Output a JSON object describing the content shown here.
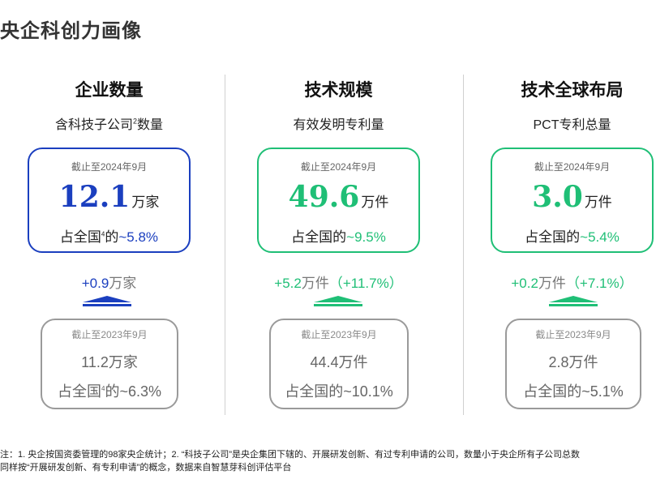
{
  "page_title": "央企科创力画像",
  "colors": {
    "blue": "#1b3fbf",
    "green": "#1fbf76",
    "gray": "#8a8a8a"
  },
  "columns": [
    {
      "title": "企业数量",
      "subtitle": "含科技子公司",
      "subtitle_sup": "2",
      "subtitle_tail": "数量",
      "current": {
        "date": "截止至2024年9月",
        "value": "12.1",
        "unit": "万家",
        "share_prefix": "占全国",
        "share_sup": "4",
        "share_mid": "的",
        "share_value": "~5.8%"
      },
      "growth": {
        "value": "+0.9",
        "unit": "万家",
        "pct": ""
      },
      "previous": {
        "date": "截止至2023年9月",
        "value": "11.2",
        "unit": "万家",
        "share_prefix": "占全国",
        "share_sup": "4",
        "share_mid": "的",
        "share_value": "~6.3%"
      }
    },
    {
      "title": "技术规模",
      "subtitle": "有效发明专利量",
      "current": {
        "date": "截止至2024年9月",
        "value": "49.6",
        "unit": "万件",
        "share_prefix": "占全国的",
        "share_value": "~9.5%"
      },
      "growth": {
        "value": "+5.2",
        "unit": "万件",
        "pct": "（+11.7%）"
      },
      "previous": {
        "date": "截止至2023年9月",
        "value": "44.4",
        "unit": "万件",
        "share_prefix": "占全国的",
        "share_value": "~10.1%"
      }
    },
    {
      "title": "技术全球布局",
      "subtitle": "PCT专利总量",
      "current": {
        "date": "截止至2024年9月",
        "value": "3.0",
        "unit": "万件",
        "share_prefix": "占全国的",
        "share_value": "~5.4%"
      },
      "growth": {
        "value": "+0.2",
        "unit": "万件",
        "pct": "（+7.1%）"
      },
      "previous": {
        "date": "截止至2023年9月",
        "value": "2.8",
        "unit": "万件",
        "share_prefix": "占全国的",
        "share_value": "~5.1%"
      }
    }
  ],
  "footnote": {
    "line1": "注：1. 央企按国资委管理的98家央企统计；2. “科技子公司”是央企集团下辖的、开展研发创新、有过专利申请的公司，数量小于央企所有子公司总数",
    "line2": "同样按“开展研发创新、有专利申请”的概念，数据来自智慧芽科创评估平台"
  }
}
